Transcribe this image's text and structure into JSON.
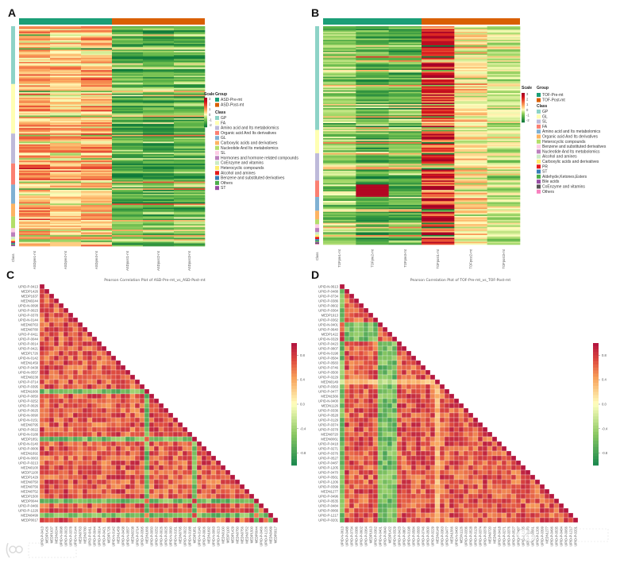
{
  "panels": {
    "a": "A",
    "b": "B",
    "c": "C",
    "d": "D"
  },
  "watermarks": {
    "left": "大数跨境",
    "right": "中科生信"
  },
  "chart_data": [
    {
      "id": "A",
      "type": "heatmap",
      "title": "",
      "samples": [
        "ASDpre1-mt",
        "ASDpre2-mt",
        "ASDpre3-mt",
        "ASDpost1-mt",
        "ASDpost2-mt",
        "ASDpost3-mt"
      ],
      "sample_groups": [
        0,
        0,
        0,
        1,
        1,
        1
      ],
      "column_mean_z": [
        0.9,
        0.6,
        0.8,
        -1.0,
        -1.1,
        -1.0
      ],
      "row_count": 160,
      "seed": 11,
      "class_label": "Class",
      "scale": {
        "title": "Scale",
        "ticks": [
          "3",
          "2",
          "1",
          "0",
          "-1",
          "-2"
        ],
        "range": [
          -2,
          3
        ]
      },
      "group_legend": {
        "title": "Group",
        "items": [
          {
            "label": "ASD-Pre-mt",
            "color": "#1b9e77"
          },
          {
            "label": "ASD-Post-mt",
            "color": "#d95f02"
          }
        ]
      },
      "class_legend": {
        "title": "Class",
        "items": [
          {
            "label": "GP",
            "color": "#8dd3c7",
            "share": 0.263
          },
          {
            "label": "FA",
            "color": "#ffffb3",
            "share": 0.225
          },
          {
            "label": "Amino acid and Its metabolomics",
            "color": "#bebada",
            "share": 0.136
          },
          {
            "label": "Organic acid And Its derivatives",
            "color": "#fb8072",
            "share": 0.096
          },
          {
            "label": "GL",
            "color": "#80b1d3",
            "share": 0.087
          },
          {
            "label": "Carboxylic acids and derivatives",
            "color": "#fdb462",
            "share": 0.058
          },
          {
            "label": "Nucleotide And Its metabolomics",
            "color": "#b3de69",
            "share": 0.053
          },
          {
            "label": "SL",
            "color": "#fccde5",
            "share": 0.019
          },
          {
            "label": "Hormones and hormone related compounds",
            "color": "#bc80bd",
            "share": 0.02
          },
          {
            "label": "CoEnzyme and vitamins",
            "color": "#ccebc5",
            "share": 0.012
          },
          {
            "label": "Heterocyclic compounds",
            "color": "#ffed6f",
            "share": 0.008
          },
          {
            "label": "Alcohol and amines",
            "color": "#e41a1c",
            "share": 0.007
          },
          {
            "label": "Benzene and substituted derivatives",
            "color": "#377eb8",
            "share": 0.005
          },
          {
            "label": "Others",
            "color": "#4daf4a",
            "share": 0.005
          },
          {
            "label": "ST",
            "color": "#984ea3",
            "share": 0.006
          }
        ]
      }
    },
    {
      "id": "B",
      "type": "heatmap",
      "title": "",
      "samples": [
        "TOFpre1-mt",
        "TOFpre2-mt",
        "TOFpre3-mt",
        "TOFpost1-mt",
        "TOFpost2-mt",
        "TOFpost3-mt"
      ],
      "sample_groups": [
        0,
        0,
        0,
        1,
        1,
        1
      ],
      "column_mean_z": [
        -0.6,
        -1.1,
        -1.0,
        2.0,
        0.3,
        -0.2
      ],
      "row_count": 160,
      "seed": 29,
      "class_label": "Class",
      "scale": {
        "title": "Scale",
        "ticks": [
          "3",
          "2",
          "1",
          "0",
          "-1",
          "-2"
        ],
        "range": [
          -2,
          3
        ]
      },
      "group_legend": {
        "title": "Group",
        "items": [
          {
            "label": "TOF-Pre-mt",
            "color": "#1b9e77"
          },
          {
            "label": "TOF-Post-mt",
            "color": "#d95f02"
          }
        ]
      },
      "class_legend": {
        "title": "Class",
        "items": [
          {
            "label": "GP",
            "color": "#8dd3c7",
            "share": 0.475
          },
          {
            "label": "GL",
            "color": "#ffffb3",
            "share": 0.107
          },
          {
            "label": "SL",
            "color": "#bebada",
            "share": 0.125
          },
          {
            "label": "FA",
            "color": "#fb8072",
            "share": 0.075
          },
          {
            "label": "Amino acid and Its metabolomics",
            "color": "#80b1d3",
            "share": 0.063
          },
          {
            "label": "Organic acid And Its derivatives",
            "color": "#fdb462",
            "share": 0.04
          },
          {
            "label": "Heterocyclic compounds",
            "color": "#b3de69",
            "share": 0.022
          },
          {
            "label": "Benzene and substituted derivatives",
            "color": "#fccde5",
            "share": 0.017
          },
          {
            "label": "Nucleotide And Its metabolomics",
            "color": "#bc80bd",
            "share": 0.019
          },
          {
            "label": "Alcohol and amines",
            "color": "#ccebc5",
            "share": 0.012
          },
          {
            "label": "Carboxylic acids and derivatives",
            "color": "#ffed6f",
            "share": 0.01
          },
          {
            "label": "PR",
            "color": "#e41a1c",
            "share": 0.01
          },
          {
            "label": "ST",
            "color": "#377eb8",
            "share": 0.007
          },
          {
            "label": "Aldehyde,Ketones,Esters",
            "color": "#4daf4a",
            "share": 0.006
          },
          {
            "label": "Bile acids",
            "color": "#984ea3",
            "share": 0.005
          },
          {
            "label": "CoEnzyme and vitamins",
            "color": "#555555",
            "share": 0.004
          },
          {
            "label": "Others",
            "color": "#f781bf",
            "share": 0.003
          }
        ]
      }
    },
    {
      "id": "C",
      "type": "heatmap",
      "title": "Pearson Correlation Plot of ASD-Pre-mt_vs_ASD-Post-mt",
      "layout": "lower-triangle",
      "features": [
        "UPID-P-0413",
        "MEDP1426",
        "MEDP1637",
        "MEDN0244",
        "UPID-N-0098",
        "UPID-P-0023",
        "UPID-P-0378",
        "UPID-N-0144",
        "MEDN0763",
        "MEDN0780",
        "UPID-P-0411",
        "UPID-P-0044",
        "UPID-P-0014",
        "UPID-P-0421",
        "MEDP1726",
        "UPID-N-0142",
        "MEDN1459",
        "UPID-P-0438",
        "UPID-N-0557",
        "MEDN0238",
        "UPID-P-0714",
        "UPID-P-0395",
        "MEDN1666",
        "UPID-P-0050",
        "UPID-P-0252",
        "UPID-P-0026",
        "UPID-P-0025",
        "UPID-N-0090",
        "UPID-N-0151",
        "MEDN0795",
        "UPID-P-0022",
        "UPID-N-0188",
        "MEDP1851",
        "UPID-N-0140",
        "UPID-P-0006",
        "MEDN1692",
        "UPID-N-0063",
        "UPID-P-0213",
        "MEDN0100",
        "MEDP1100",
        "MEDP1429",
        "MEDN0750",
        "MEDN0756",
        "MEDN0752",
        "MEDP1500",
        "MEDP0044",
        "UPID-P-0466",
        "UPID-P-1226",
        "MEDN0499",
        "MEDP0017"
      ],
      "anticorrelated_features": [
        "MEDN1666",
        "MEDP1851",
        "MEDP0044",
        "MEDN0499"
      ],
      "typical_abs_r": [
        0.45,
        0.95
      ],
      "seed": 5,
      "colorbar": {
        "ticks": [
          "0.8",
          "0.4",
          "0.0",
          "-0.4",
          "-0.8"
        ],
        "range": [
          -1,
          1
        ]
      }
    },
    {
      "id": "D",
      "type": "heatmap",
      "title": "Pearson Correlation Plot of TOF-Pre-mt_vs_TOF-Post-mt",
      "layout": "lower-triangle",
      "features": [
        "UPID-N-0613",
        "UPID-P-0488",
        "UPID-P-0734",
        "UPID-P-0386",
        "UPID-P-0602",
        "UPID-P-0364",
        "MEDP1913",
        "UPID-P-0362",
        "UPID-N-0401",
        "UPID-P-0640",
        "MEDP1422",
        "UPID-N-0329",
        "UPID-P-0423",
        "UPID-P-0807",
        "UPID-N-0198",
        "UPID-P-0584",
        "UPID-P-0583",
        "UPID-P-0746",
        "UPID-P-0500",
        "UPID-P-0229",
        "MEDN0149",
        "UPID-P-0363",
        "UPID-P-0477",
        "MEDN1566",
        "UPID-N-0400",
        "MEDN1126",
        "UPID-P-0336",
        "UPID-P-0528",
        "UPID-P-0129",
        "UPID-P-0374",
        "UPID-P-0378",
        "MEDN0720",
        "MEDN0061",
        "UPID-P-0418",
        "UPID-P-0271",
        "UPID-P-0376",
        "UPID-P-0527",
        "UPID-P-0487",
        "UPID-P-1205",
        "UPID-P-0470",
        "UPID-P-0561",
        "UPID-P-1206",
        "UPID-P-0399",
        "MEDN1277",
        "UPID-P-0496",
        "UPID-P-0535",
        "UPID-P-0484",
        "UPID-P-0066",
        "UPID-P-1217",
        "UPID-P-0201"
      ],
      "anticorrelated_features": [
        "UPID-N-0613",
        "UPID-N-0401",
        "UPID-P-0640",
        "MEDP1422",
        "UPID-N-0329"
      ],
      "weak_features": [
        "MEDN0149"
      ],
      "typical_abs_r": [
        0.45,
        0.95
      ],
      "seed": 17,
      "colorbar": {
        "ticks": [
          "0.8",
          "0.4",
          "0.0",
          "-0.4",
          "-0.8"
        ],
        "range": [
          -1,
          1
        ]
      }
    }
  ]
}
